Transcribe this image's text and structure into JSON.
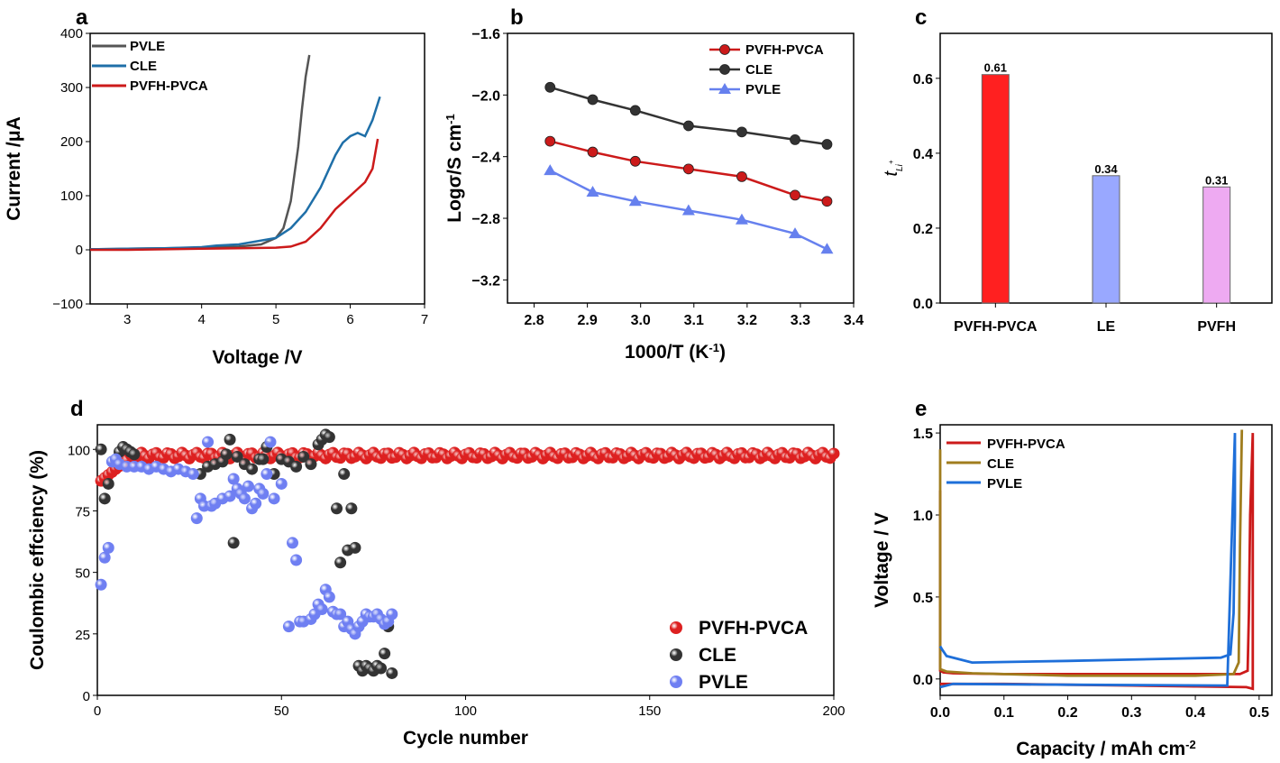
{
  "chart_data": [
    {
      "panel": "a",
      "type": "line",
      "xlabel": "Voltage /V",
      "ylabel": "Current /μA",
      "xlim": [
        2.5,
        7
      ],
      "ylim": [
        -100,
        400
      ],
      "xticks": [
        "3",
        "4",
        "5",
        "6",
        "7"
      ],
      "yticks": [
        "-100",
        "0",
        "100",
        "200",
        "300",
        "400"
      ],
      "legend_position": "top-left",
      "series": [
        {
          "name": "PVLE",
          "color": "#555555",
          "x": [
            2.5,
            3.0,
            3.5,
            4.0,
            4.5,
            4.8,
            5.0,
            5.1,
            5.2,
            5.3,
            5.35,
            5.4,
            5.45
          ],
          "y": [
            1,
            2,
            3,
            4,
            6,
            10,
            22,
            40,
            90,
            190,
            260,
            320,
            360
          ]
        },
        {
          "name": "CLE",
          "color": "#1f6fa8",
          "x": [
            2.5,
            3.0,
            3.5,
            4.0,
            4.2,
            4.5,
            5.0,
            5.2,
            5.4,
            5.6,
            5.8,
            5.9,
            6.0,
            6.1,
            6.2,
            6.3,
            6.4
          ],
          "y": [
            1,
            2,
            3,
            5,
            8,
            10,
            22,
            40,
            70,
            115,
            175,
            198,
            210,
            216,
            210,
            240,
            283
          ]
        },
        {
          "name": "PVFH-PVCA",
          "color": "#cc1a1a",
          "x": [
            2.5,
            3.0,
            3.5,
            4.0,
            4.5,
            5.0,
            5.2,
            5.4,
            5.6,
            5.8,
            6.0,
            6.2,
            6.3,
            6.37
          ],
          "y": [
            0,
            0,
            1,
            2,
            3,
            4,
            6,
            15,
            40,
            75,
            100,
            125,
            150,
            205
          ]
        }
      ]
    },
    {
      "panel": "b",
      "type": "line",
      "xlabel": "1000/T (K-1)",
      "ylabel": "Logσ/S cm-1",
      "xlim": [
        2.75,
        3.4
      ],
      "ylim": [
        -3.35,
        -1.6
      ],
      "xticks": [
        "2.8",
        "2.9",
        "3.0",
        "3.1",
        "3.2",
        "3.3",
        "3.4"
      ],
      "yticks": [
        "-1.6",
        "-2.0",
        "-2.4",
        "-2.8",
        "-3.2"
      ],
      "legend_position": "top-right",
      "x": [
        2.83,
        2.91,
        2.99,
        3.09,
        3.19,
        3.29,
        3.35
      ],
      "series": [
        {
          "name": "PVFH-PVCA",
          "color": "#cc1a1a",
          "marker": "circle",
          "values": [
            -2.3,
            -2.37,
            -2.43,
            -2.48,
            -2.53,
            -2.65,
            -2.69
          ]
        },
        {
          "name": "CLE",
          "color": "#333333",
          "marker": "circle",
          "values": [
            -1.95,
            -2.03,
            -2.1,
            -2.2,
            -2.24,
            -2.29,
            -2.32
          ]
        },
        {
          "name": "PVLE",
          "color": "#6680ee",
          "marker": "triangle",
          "values": [
            -2.49,
            -2.63,
            -2.69,
            -2.75,
            -2.81,
            -2.9,
            -3.0
          ]
        }
      ]
    },
    {
      "panel": "c",
      "type": "bar",
      "ylabel": "tLi+",
      "ylim": [
        0,
        0.72
      ],
      "yticks": [
        "0.0",
        "0.2",
        "0.4",
        "0.6"
      ],
      "categories": [
        "PVFH-PVCA",
        "LE",
        "PVFH"
      ],
      "values": [
        0.61,
        0.34,
        0.31
      ],
      "value_labels": [
        "0.61",
        "0.34",
        "0.31"
      ],
      "colors": [
        "#ff2020",
        "#99a8ff",
        "#eeaaf2"
      ]
    },
    {
      "panel": "d",
      "type": "scatter",
      "xlabel": "Cycle number",
      "ylabel": "Coulombic effciency (%)",
      "xlim": [
        0,
        200
      ],
      "ylim": [
        0,
        110
      ],
      "xticks": [
        "0",
        "50",
        "100",
        "150",
        "200"
      ],
      "yticks": [
        "0",
        "25",
        "50",
        "75",
        "100"
      ],
      "legend_position": "bottom-right",
      "series": [
        {
          "name": "PVFH-PVCA",
          "color": "#dd2020",
          "x_range": [
            1,
            200
          ],
          "values_note": "",
          "x": [
            1,
            2,
            3,
            4,
            5,
            6,
            7,
            8,
            10,
            20,
            40,
            80,
            120,
            160,
            200
          ],
          "y": [
            87,
            88,
            89,
            90,
            91,
            93,
            95,
            96,
            97,
            98,
            98,
            98,
            98,
            98,
            98
          ]
        },
        {
          "name": "CLE",
          "color": "#333333",
          "x": [
            1,
            2,
            3,
            5,
            6,
            7,
            8,
            9,
            10,
            28,
            30,
            32,
            34,
            35,
            36,
            37,
            38,
            40,
            42,
            44,
            45,
            46,
            48,
            50,
            52,
            54,
            56,
            58,
            60,
            61,
            62,
            63,
            65,
            66,
            67,
            68,
            69,
            70,
            71,
            72,
            73,
            74,
            75,
            76,
            77,
            78,
            79,
            80
          ],
          "y": [
            100,
            80,
            86,
            95,
            99,
            101,
            100,
            99,
            98,
            90,
            93,
            94,
            95,
            98,
            104,
            62,
            97,
            94,
            92,
            96,
            96,
            101,
            90,
            96,
            95,
            93,
            97,
            94,
            102,
            104,
            106,
            105,
            76,
            54,
            90,
            59,
            76,
            60,
            12,
            10,
            12,
            11,
            10,
            12,
            11,
            17,
            28,
            9
          ]
        },
        {
          "name": "PVLE",
          "color": "#6f7ff2",
          "x": [
            1,
            2,
            3,
            4,
            5,
            6,
            8,
            10,
            12,
            14,
            16,
            18,
            20,
            22,
            24,
            26,
            27,
            28,
            29,
            30,
            31,
            32,
            34,
            36,
            37,
            38,
            39,
            40,
            41,
            42,
            43,
            44,
            45,
            46,
            47,
            48,
            50,
            52,
            53,
            54,
            55,
            56,
            58,
            59,
            60,
            61,
            62,
            63,
            64,
            65,
            66,
            67,
            68,
            69,
            70,
            71,
            72,
            73,
            74,
            75,
            76,
            77,
            78,
            79,
            80
          ],
          "y": [
            45,
            56,
            60,
            95,
            96,
            94,
            93,
            93,
            93,
            92,
            93,
            92,
            91,
            92,
            91,
            90,
            72,
            80,
            77,
            103,
            77,
            78,
            80,
            81,
            88,
            84,
            82,
            80,
            85,
            76,
            78,
            84,
            82,
            90,
            103,
            80,
            86,
            28,
            62,
            55,
            30,
            30,
            31,
            33,
            37,
            35,
            43,
            40,
            34,
            33,
            33,
            28,
            30,
            27,
            25,
            28,
            30,
            33,
            32,
            32,
            33,
            31,
            29,
            30,
            33
          ]
        }
      ]
    },
    {
      "panel": "e",
      "type": "line",
      "xlabel": "Capacity / mAh cm-2",
      "ylabel": "Voltage / V",
      "xlim": [
        0,
        0.52
      ],
      "ylim": [
        -0.1,
        1.55
      ],
      "xticks": [
        "0.0",
        "0.1",
        "0.2",
        "0.3",
        "0.4",
        "0.5"
      ],
      "yticks": [
        "0.0",
        "0.5",
        "1.0",
        "1.5"
      ],
      "legend_position": "top-left",
      "series": [
        {
          "name": "PVFH-PVCA",
          "color": "#cc1a1a",
          "x": [
            0.0,
            0.0,
            0.005,
            0.02,
            0.1,
            0.3,
            0.47,
            0.482,
            0.484,
            0.486,
            0.49,
            0.49,
            0.48,
            0.3,
            0.1,
            0.0
          ],
          "y": [
            1.15,
            0.05,
            0.04,
            0.035,
            0.03,
            0.03,
            0.03,
            0.05,
            0.4,
            1.0,
            1.5,
            -0.06,
            -0.05,
            -0.04,
            -0.03,
            -0.03
          ]
        },
        {
          "name": "CLE",
          "color": "#a07d1e",
          "x": [
            0.0,
            0.0,
            0.01,
            0.05,
            0.2,
            0.4,
            0.46,
            0.468,
            0.47,
            0.473
          ],
          "y": [
            1.4,
            0.06,
            0.045,
            0.035,
            0.02,
            0.02,
            0.03,
            0.1,
            0.8,
            1.52
          ]
        },
        {
          "name": "PVLE",
          "color": "#1e6fd9",
          "x": [
            0.0,
            0.003,
            0.01,
            0.05,
            0.2,
            0.44,
            0.455,
            0.46,
            0.462,
            0.462,
            0.45,
            0.2,
            0.02,
            0.0
          ],
          "y": [
            0.2,
            0.18,
            0.14,
            0.1,
            0.11,
            0.13,
            0.15,
            0.4,
            1.0,
            1.5,
            -0.04,
            -0.035,
            -0.03,
            -0.05
          ]
        }
      ]
    }
  ]
}
